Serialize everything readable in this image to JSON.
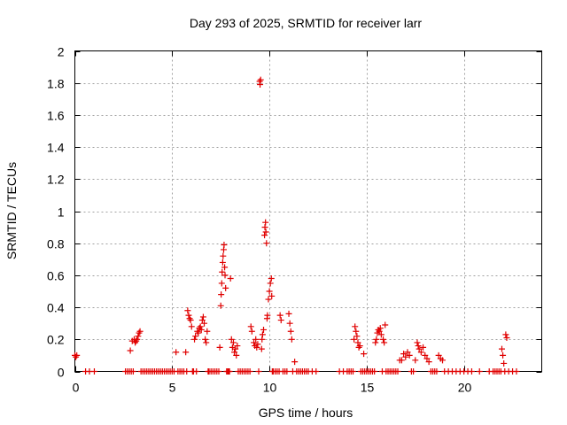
{
  "chart_data": {
    "type": "scatter",
    "title": "Day 293 of 2025, SRMTID for receiver larr",
    "xlabel": "GPS time / hours",
    "ylabel": "SRMTID / TECUs",
    "xlim": [
      0,
      24
    ],
    "ylim": [
      0,
      2
    ],
    "xticks": [
      0,
      5,
      10,
      15,
      20
    ],
    "xtick_labels": [
      "0",
      "5",
      "10",
      "15",
      "20"
    ],
    "yticks": [
      0,
      0.2,
      0.4,
      0.6,
      0.8,
      1,
      1.2,
      1.4,
      1.6,
      1.8,
      2
    ],
    "ytick_labels": [
      "0",
      "0.2",
      "0.4",
      "0.6",
      "0.8",
      "1",
      "1.2",
      "1.4",
      "1.6",
      "1.8",
      "2"
    ],
    "grid": true,
    "marker": "+",
    "color": "#e00000",
    "series": [
      {
        "name": "SRMTID",
        "points": [
          [
            0.0,
            0.1
          ],
          [
            0.05,
            0.09
          ],
          [
            0.1,
            0.1
          ],
          [
            0.55,
            0.0
          ],
          [
            0.75,
            0.0
          ],
          [
            1.0,
            0.0
          ],
          [
            2.6,
            0.0
          ],
          [
            2.7,
            0.0
          ],
          [
            2.8,
            0.0
          ],
          [
            2.85,
            0.13
          ],
          [
            2.9,
            0.0
          ],
          [
            2.95,
            0.19
          ],
          [
            3.0,
            0.0
          ],
          [
            3.05,
            0.2
          ],
          [
            3.1,
            0.18
          ],
          [
            3.15,
            0.19
          ],
          [
            3.2,
            0.2
          ],
          [
            3.25,
            0.22
          ],
          [
            3.3,
            0.24
          ],
          [
            3.35,
            0.25
          ],
          [
            3.4,
            0.0
          ],
          [
            3.5,
            0.0
          ],
          [
            3.6,
            0.0
          ],
          [
            3.7,
            0.0
          ],
          [
            3.8,
            0.0
          ],
          [
            3.9,
            0.0
          ],
          [
            4.0,
            0.0
          ],
          [
            4.1,
            0.0
          ],
          [
            4.2,
            0.0
          ],
          [
            4.3,
            0.0
          ],
          [
            4.4,
            0.0
          ],
          [
            4.5,
            0.0
          ],
          [
            4.6,
            0.0
          ],
          [
            4.7,
            0.0
          ],
          [
            4.8,
            0.0
          ],
          [
            4.9,
            0.0
          ],
          [
            5.0,
            0.0
          ],
          [
            5.1,
            0.0
          ],
          [
            5.2,
            0.12
          ],
          [
            5.3,
            0.0
          ],
          [
            5.4,
            0.0
          ],
          [
            5.5,
            0.0
          ],
          [
            5.6,
            0.0
          ],
          [
            5.7,
            0.12
          ],
          [
            5.75,
            0.0
          ],
          [
            5.8,
            0.38
          ],
          [
            5.85,
            0.35
          ],
          [
            5.9,
            0.33
          ],
          [
            5.95,
            0.32
          ],
          [
            6.0,
            0.28
          ],
          [
            6.05,
            0.0
          ],
          [
            6.1,
            0.0
          ],
          [
            6.15,
            0.2
          ],
          [
            6.2,
            0.22
          ],
          [
            6.25,
            0.0
          ],
          [
            6.3,
            0.25
          ],
          [
            6.35,
            0.24
          ],
          [
            6.4,
            0.27
          ],
          [
            6.45,
            0.28
          ],
          [
            6.5,
            0.26
          ],
          [
            6.55,
            0.32
          ],
          [
            6.6,
            0.34
          ],
          [
            6.65,
            0.3
          ],
          [
            6.7,
            0.2
          ],
          [
            6.75,
            0.18
          ],
          [
            6.8,
            0.25
          ],
          [
            6.85,
            0.0
          ],
          [
            6.9,
            0.0
          ],
          [
            7.0,
            0.0
          ],
          [
            7.1,
            0.0
          ],
          [
            7.2,
            0.0
          ],
          [
            7.3,
            0.0
          ],
          [
            7.4,
            0.0
          ],
          [
            7.45,
            0.15
          ],
          [
            7.5,
            0.41
          ],
          [
            7.52,
            0.48
          ],
          [
            7.55,
            0.55
          ],
          [
            7.57,
            0.62
          ],
          [
            7.6,
            0.68
          ],
          [
            7.62,
            0.72
          ],
          [
            7.65,
            0.76
          ],
          [
            7.67,
            0.79
          ],
          [
            7.7,
            0.65
          ],
          [
            7.72,
            0.6
          ],
          [
            7.75,
            0.52
          ],
          [
            7.8,
            0.0
          ],
          [
            7.85,
            0.0
          ],
          [
            7.9,
            0.0
          ],
          [
            7.95,
            0.0
          ],
          [
            8.0,
            0.58
          ],
          [
            8.05,
            0.2
          ],
          [
            8.1,
            0.15
          ],
          [
            8.15,
            0.18
          ],
          [
            8.2,
            0.12
          ],
          [
            8.25,
            0.14
          ],
          [
            8.3,
            0.1
          ],
          [
            8.35,
            0.16
          ],
          [
            8.4,
            0.0
          ],
          [
            8.5,
            0.0
          ],
          [
            8.6,
            0.0
          ],
          [
            8.7,
            0.0
          ],
          [
            8.8,
            0.0
          ],
          [
            8.9,
            0.0
          ],
          [
            9.0,
            0.0
          ],
          [
            9.05,
            0.28
          ],
          [
            9.1,
            0.25
          ],
          [
            9.2,
            0.18
          ],
          [
            9.25,
            0.16
          ],
          [
            9.3,
            0.2
          ],
          [
            9.35,
            0.15
          ],
          [
            9.4,
            0.17
          ],
          [
            9.45,
            0.0
          ],
          [
            9.5,
            1.81
          ],
          [
            9.52,
            1.79
          ],
          [
            9.55,
            1.82
          ],
          [
            9.6,
            0.14
          ],
          [
            9.62,
            0.2
          ],
          [
            9.65,
            0.23
          ],
          [
            9.7,
            0.26
          ],
          [
            9.75,
            0.85
          ],
          [
            9.77,
            0.9
          ],
          [
            9.8,
            0.93
          ],
          [
            9.82,
            0.87
          ],
          [
            9.85,
            0.8
          ],
          [
            9.88,
            0.33
          ],
          [
            9.9,
            0.35
          ],
          [
            9.95,
            0.45
          ],
          [
            10.0,
            0.5
          ],
          [
            10.05,
            0.55
          ],
          [
            10.1,
            0.58
          ],
          [
            10.12,
            0.47
          ],
          [
            10.15,
            0.0
          ],
          [
            10.2,
            0.0
          ],
          [
            10.3,
            0.0
          ],
          [
            10.4,
            0.0
          ],
          [
            10.5,
            0.0
          ],
          [
            10.55,
            0.35
          ],
          [
            10.6,
            0.32
          ],
          [
            10.7,
            0.0
          ],
          [
            10.8,
            0.0
          ],
          [
            10.9,
            0.0
          ],
          [
            11.0,
            0.36
          ],
          [
            11.05,
            0.3
          ],
          [
            11.1,
            0.25
          ],
          [
            11.15,
            0.2
          ],
          [
            11.2,
            0.0
          ],
          [
            11.3,
            0.06
          ],
          [
            11.4,
            0.0
          ],
          [
            11.5,
            0.0
          ],
          [
            11.6,
            0.0
          ],
          [
            11.7,
            0.0
          ],
          [
            11.8,
            0.0
          ],
          [
            11.9,
            0.0
          ],
          [
            12.0,
            0.0
          ],
          [
            12.2,
            0.0
          ],
          [
            12.4,
            0.0
          ],
          [
            13.6,
            0.0
          ],
          [
            13.8,
            0.0
          ],
          [
            14.0,
            0.0
          ],
          [
            14.1,
            0.0
          ],
          [
            14.2,
            0.0
          ],
          [
            14.3,
            0.0
          ],
          [
            14.35,
            0.2
          ],
          [
            14.4,
            0.28
          ],
          [
            14.45,
            0.25
          ],
          [
            14.5,
            0.22
          ],
          [
            14.55,
            0.18
          ],
          [
            14.6,
            0.15
          ],
          [
            14.65,
            0.16
          ],
          [
            14.7,
            0.0
          ],
          [
            14.8,
            0.0
          ],
          [
            14.85,
            0.11
          ],
          [
            14.9,
            0.0
          ],
          [
            15.0,
            0.0
          ],
          [
            15.1,
            0.0
          ],
          [
            15.2,
            0.0
          ],
          [
            15.3,
            0.0
          ],
          [
            15.4,
            0.0
          ],
          [
            15.45,
            0.18
          ],
          [
            15.5,
            0.2
          ],
          [
            15.55,
            0.24
          ],
          [
            15.6,
            0.26
          ],
          [
            15.65,
            0.25
          ],
          [
            15.7,
            0.27
          ],
          [
            15.75,
            0.23
          ],
          [
            15.8,
            0.0
          ],
          [
            15.85,
            0.2
          ],
          [
            15.9,
            0.18
          ],
          [
            15.95,
            0.29
          ],
          [
            16.0,
            0.0
          ],
          [
            16.1,
            0.0
          ],
          [
            16.2,
            0.0
          ],
          [
            16.3,
            0.0
          ],
          [
            16.4,
            0.0
          ],
          [
            16.5,
            0.0
          ],
          [
            16.6,
            0.0
          ],
          [
            16.7,
            0.07
          ],
          [
            16.8,
            0.07
          ],
          [
            16.9,
            0.11
          ],
          [
            17.0,
            0.09
          ],
          [
            17.1,
            0.12
          ],
          [
            17.2,
            0.1
          ],
          [
            17.3,
            0.0
          ],
          [
            17.4,
            0.0
          ],
          [
            17.5,
            0.07
          ],
          [
            17.6,
            0.18
          ],
          [
            17.65,
            0.16
          ],
          [
            17.7,
            0.14
          ],
          [
            17.8,
            0.12
          ],
          [
            17.9,
            0.15
          ],
          [
            18.0,
            0.1
          ],
          [
            18.1,
            0.08
          ],
          [
            18.2,
            0.06
          ],
          [
            18.3,
            0.0
          ],
          [
            18.4,
            0.0
          ],
          [
            18.5,
            0.0
          ],
          [
            18.6,
            0.0
          ],
          [
            18.7,
            0.1
          ],
          [
            18.8,
            0.08
          ],
          [
            18.9,
            0.07
          ],
          [
            19.0,
            0.0
          ],
          [
            19.2,
            0.0
          ],
          [
            19.4,
            0.0
          ],
          [
            19.6,
            0.0
          ],
          [
            19.8,
            0.0
          ],
          [
            20.0,
            0.0
          ],
          [
            20.2,
            0.0
          ],
          [
            20.4,
            0.0
          ],
          [
            20.8,
            0.0
          ],
          [
            21.3,
            0.0
          ],
          [
            21.5,
            0.0
          ],
          [
            21.6,
            0.0
          ],
          [
            21.7,
            0.0
          ],
          [
            21.8,
            0.0
          ],
          [
            21.9,
            0.0
          ],
          [
            21.95,
            0.14
          ],
          [
            22.0,
            0.1
          ],
          [
            22.05,
            0.05
          ],
          [
            22.1,
            0.0
          ],
          [
            22.15,
            0.23
          ],
          [
            22.2,
            0.21
          ],
          [
            22.3,
            0.0
          ],
          [
            22.5,
            0.0
          ],
          [
            22.7,
            0.0
          ]
        ]
      }
    ]
  }
}
